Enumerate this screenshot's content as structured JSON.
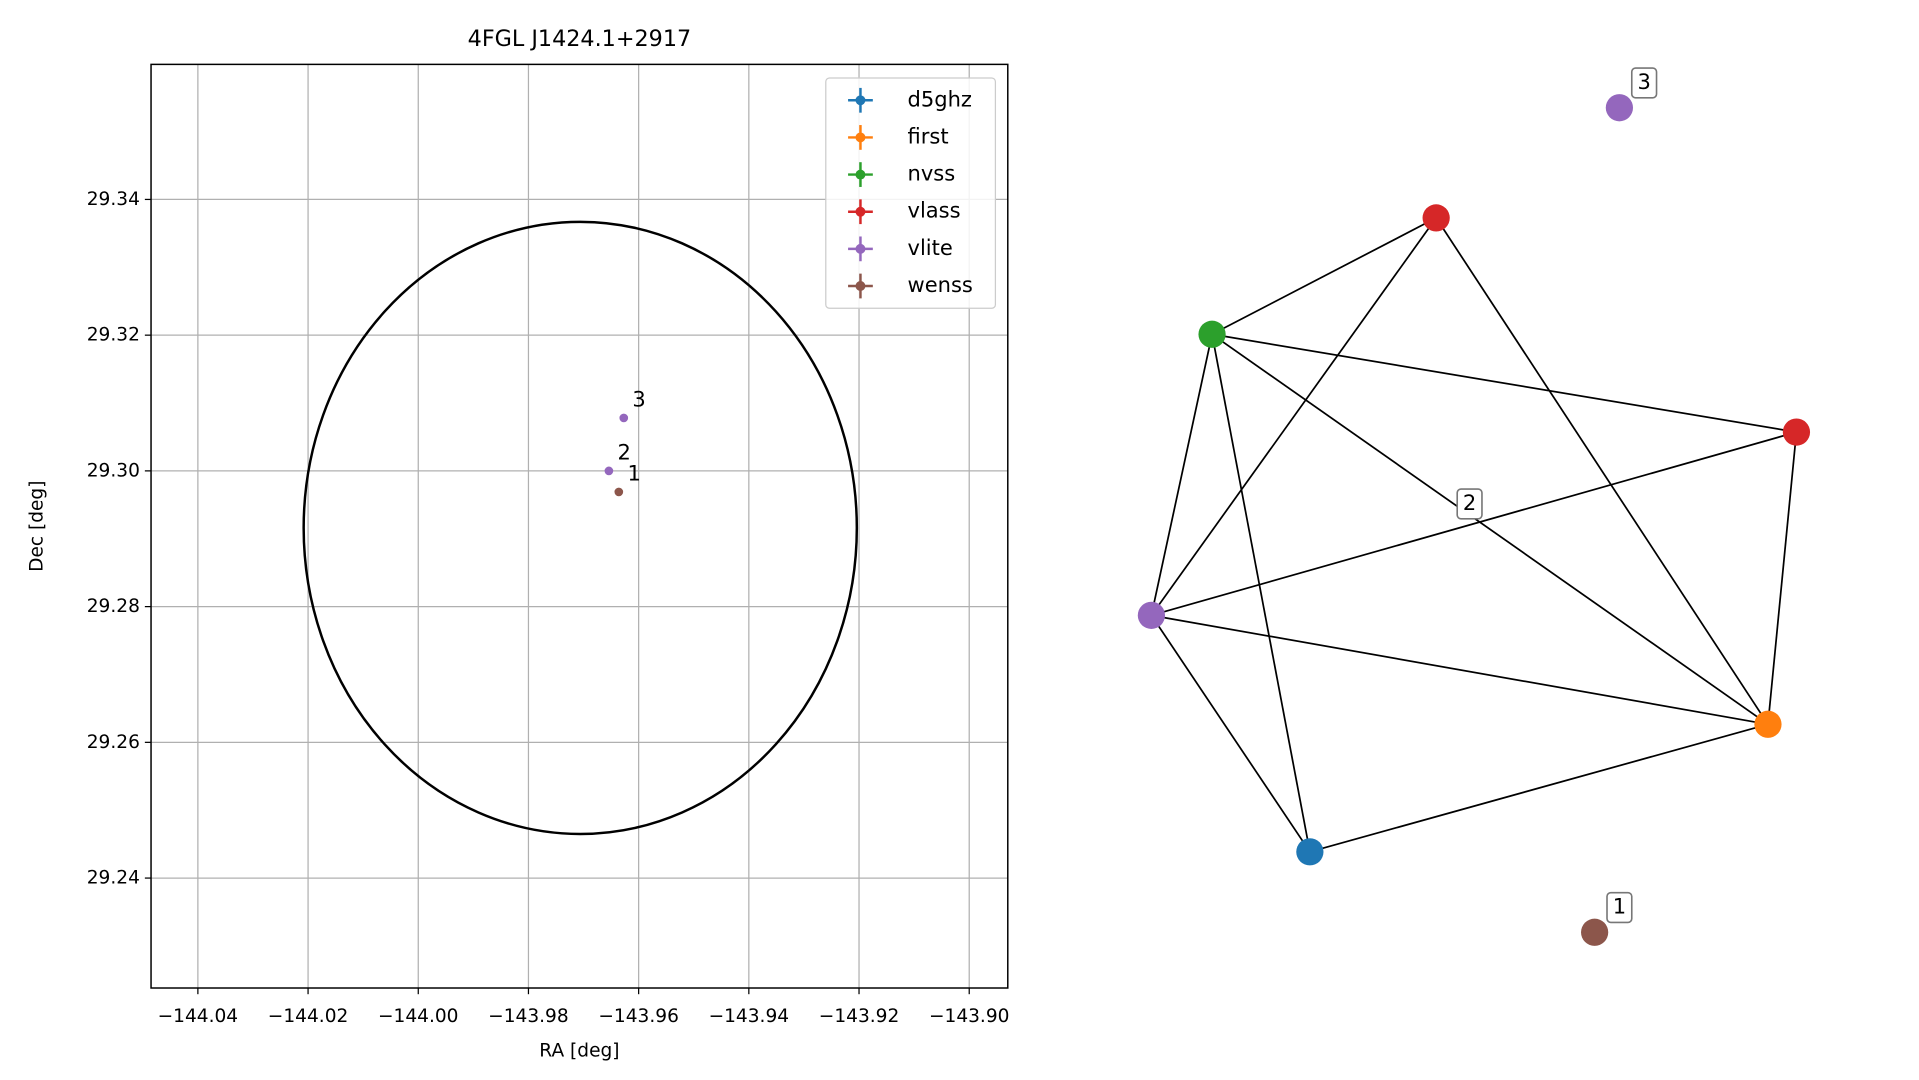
{
  "chart_data": [
    {
      "type": "scatter",
      "title": "4FGL J1424.1+2917",
      "x_label": "RA [deg]",
      "y_label": "Dec [deg]",
      "xlim": [
        -144.0485,
        -143.893
      ],
      "ylim": [
        29.2238,
        29.3599
      ],
      "xticks": [
        {
          "value": -144.04,
          "label": "−144.04"
        },
        {
          "value": -144.02,
          "label": "−144.02"
        },
        {
          "value": -144.0,
          "label": "−144.00"
        },
        {
          "value": -143.98,
          "label": "−143.98"
        },
        {
          "value": -143.96,
          "label": "−143.96"
        },
        {
          "value": -143.94,
          "label": "−143.94"
        },
        {
          "value": -143.92,
          "label": "−143.92"
        },
        {
          "value": -143.9,
          "label": "−143.90"
        }
      ],
      "yticks": [
        29.24,
        29.26,
        29.28,
        {
          "value": 29.3,
          "label": "29.30"
        },
        29.32,
        29.34
      ],
      "grid": true,
      "legend": "upper right",
      "ellipse": {
        "ra": -143.9706,
        "dec": 29.2916,
        "a": 0.0502,
        "b": 0.0451,
        "color": "#000000"
      },
      "series": [
        {
          "name": "d5ghz",
          "color": "#1f77b4",
          "x": [],
          "y": [],
          "labels": []
        },
        {
          "name": "first",
          "color": "#ff7f0e",
          "x": [],
          "y": [],
          "labels": []
        },
        {
          "name": "nvss",
          "color": "#2ca02c",
          "x": [],
          "y": [],
          "labels": []
        },
        {
          "name": "vlass",
          "color": "#d62728",
          "x": [],
          "y": [],
          "labels": []
        },
        {
          "name": "vlite",
          "color": "#9467bd",
          "x": [
            -143.9654,
            -143.9627
          ],
          "y": [
            29.3,
            29.3078
          ],
          "labels": [
            "2",
            "3"
          ]
        },
        {
          "name": "wenss",
          "color": "#8c564b",
          "x": [
            -143.9636
          ],
          "y": [
            29.2969
          ],
          "labels": [
            "1"
          ]
        }
      ]
    },
    {
      "type": "network",
      "nodes": [
        {
          "color": "#d62728"
        },
        {
          "color": "#2ca02c"
        },
        {
          "color": "#d62728"
        },
        {
          "color": "#9467bd"
        },
        {
          "color": "#ff7f0e"
        },
        {
          "color": "#1f77b4"
        },
        {
          "color": "#9467bd",
          "label": "3"
        },
        {
          "color": "#8c564b",
          "label": "1"
        },
        {
          "label": "2"
        }
      ],
      "edges": [
        [
          0,
          1
        ],
        [
          0,
          3
        ],
        [
          0,
          4
        ],
        [
          1,
          2
        ],
        [
          1,
          3
        ],
        [
          1,
          5
        ],
        [
          1,
          4
        ],
        [
          2,
          3
        ],
        [
          2,
          4
        ],
        [
          3,
          4
        ],
        [
          3,
          5
        ],
        [
          5,
          4
        ]
      ]
    }
  ]
}
